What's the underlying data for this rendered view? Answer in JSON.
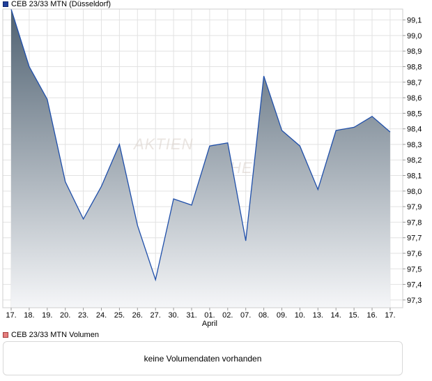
{
  "legend": {
    "price_label": "CEB 23/33 MTN (Düsseldorf)",
    "volume_label": "CEB 23/33 MTN Volumen"
  },
  "volume_panel": {
    "message": "keine Volumendaten vorhanden"
  },
  "watermark": {
    "text": "AKTIEN CHECK",
    "visible_fragment_1": "AKTIEN",
    "visible_fragment_2": "HECK"
  },
  "colors": {
    "line": "#1f4faa",
    "area_top": "#4f6171",
    "area_bottom": "#f5f6f8",
    "grid": "#e2e2e2",
    "volume_legend": "#e57f7f"
  },
  "chart_data": {
    "type": "area",
    "series": [
      {
        "name": "CEB 23/33 MTN (Düsseldorf)",
        "x": [
          "17.",
          "18.",
          "19.",
          "20.",
          "23.",
          "24.",
          "25.",
          "26.",
          "27.",
          "30.",
          "31.",
          "01.",
          "02.",
          "07.",
          "08.",
          "09.",
          "10.",
          "13.",
          "14.",
          "15.",
          "16.",
          "17."
        ],
        "values": [
          99.17,
          98.8,
          98.59,
          98.06,
          97.82,
          98.03,
          98.3,
          97.78,
          97.43,
          97.95,
          97.91,
          98.29,
          98.31,
          97.68,
          98.74,
          98.39,
          98.29,
          98.01,
          98.39,
          98.41,
          98.48,
          98.38
        ]
      }
    ],
    "x_tick_labels": [
      "17.",
      "18.",
      "19.",
      "20.",
      "23.",
      "24.",
      "25.",
      "26.",
      "27.",
      "30.",
      "31.",
      "01.",
      "02.",
      "07.",
      "08.",
      "09.",
      "10.",
      "13.",
      "14.",
      "15.",
      "16.",
      "17."
    ],
    "month_label": "April",
    "y_ticks": [
      "99,1",
      "99,0",
      "98,9",
      "98,8",
      "98,7",
      "98,6",
      "98,5",
      "98,4",
      "98,3",
      "98,2",
      "98,1",
      "98,0",
      "97,9",
      "97,8",
      "97,7",
      "97,6",
      "97,5",
      "97,4",
      "97,3"
    ],
    "y_tick_values": [
      99.1,
      99.0,
      98.9,
      98.8,
      98.7,
      98.6,
      98.5,
      98.4,
      98.3,
      98.2,
      98.1,
      98.0,
      97.9,
      97.8,
      97.7,
      97.6,
      97.5,
      97.4,
      97.3
    ],
    "ylim": [
      97.25,
      99.17
    ],
    "y_axis_position": "right",
    "grid": true,
    "legend_position": "top-left"
  }
}
